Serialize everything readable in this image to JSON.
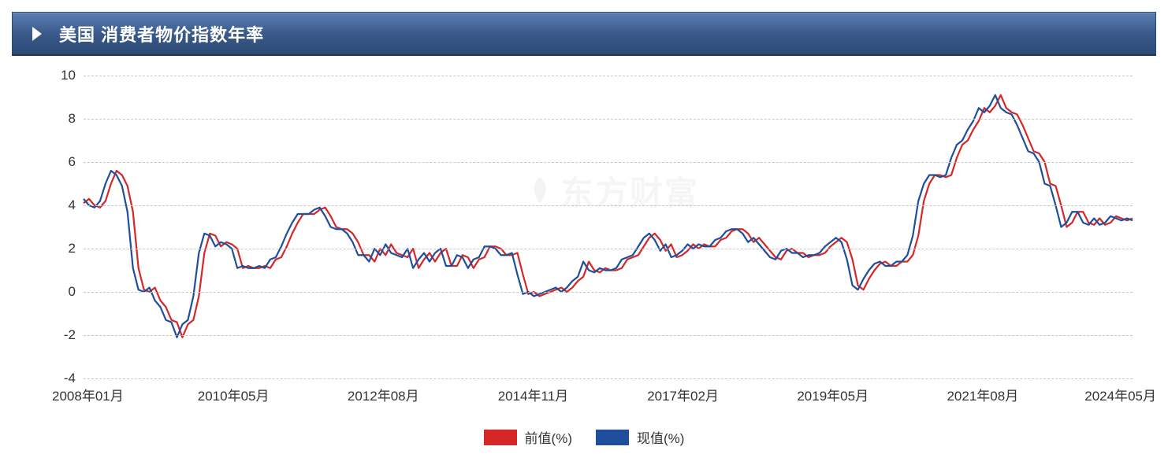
{
  "header": {
    "title": "美国 消费者物价指数年率"
  },
  "chart": {
    "type": "line",
    "ylim": [
      -4,
      10
    ],
    "ytick_step": 2,
    "yticks": [
      -4,
      -2,
      0,
      2,
      4,
      6,
      8,
      10
    ],
    "xticks": [
      "2008年01月",
      "2010年05月",
      "2012年08月",
      "2014年11月",
      "2017年02月",
      "2019年05月",
      "2021年08月",
      "2024年05月"
    ],
    "grid_color": "#c8c8c8",
    "background_color": "#ffffff",
    "line_width": 2.2,
    "watermark": "东方财富",
    "series": [
      {
        "name": "前值(%)",
        "color": "#d62728",
        "values": [
          4.1,
          4.3,
          4.0,
          3.9,
          4.2,
          5.0,
          5.6,
          5.4,
          4.9,
          3.7,
          1.1,
          0.1,
          0.0,
          0.2,
          -0.4,
          -0.7,
          -1.3,
          -1.4,
          -2.1,
          -1.5,
          -1.3,
          -0.2,
          1.8,
          2.7,
          2.6,
          2.1,
          2.3,
          2.2,
          2.0,
          1.1,
          1.2,
          1.1,
          1.1,
          1.2,
          1.1,
          1.5,
          1.6,
          2.1,
          2.7,
          3.2,
          3.6,
          3.6,
          3.6,
          3.8,
          3.9,
          3.5,
          3.0,
          2.9,
          2.9,
          2.7,
          2.3,
          1.7,
          1.7,
          1.4,
          2.0,
          1.7,
          2.2,
          1.8,
          1.7,
          1.6,
          2.0,
          1.1,
          1.5,
          1.8,
          1.4,
          1.8,
          2.0,
          1.2,
          1.2,
          1.7,
          1.6,
          1.1,
          1.5,
          1.6,
          2.1,
          2.1,
          2.0,
          1.7,
          1.7,
          1.8,
          0.8,
          -0.1,
          0.0,
          -0.2,
          -0.1,
          0.0,
          0.1,
          0.2,
          0.0,
          0.2,
          0.5,
          0.7,
          1.4,
          1.0,
          0.9,
          1.1,
          1.0,
          1.0,
          1.1,
          1.5,
          1.6,
          1.7,
          2.1,
          2.5,
          2.7,
          2.4,
          1.9,
          2.2,
          1.6,
          1.7,
          1.9,
          2.2,
          2.0,
          2.2,
          2.1,
          2.1,
          2.4,
          2.5,
          2.8,
          2.9,
          2.9,
          2.7,
          2.3,
          2.5,
          2.2,
          1.9,
          1.6,
          1.5,
          1.9,
          2.0,
          1.8,
          1.8,
          1.6,
          1.7,
          1.7,
          1.8,
          2.1,
          2.3,
          2.5,
          2.3,
          1.5,
          0.3,
          0.1,
          0.6,
          1.0,
          1.3,
          1.4,
          1.2,
          1.2,
          1.4,
          1.4,
          1.7,
          2.6,
          4.2,
          5.0,
          5.4,
          5.4,
          5.3,
          5.4,
          6.2,
          6.8,
          7.0,
          7.5,
          7.9,
          8.5,
          8.3,
          8.6,
          9.1,
          8.5,
          8.3,
          8.2,
          7.7,
          7.1,
          6.5,
          6.4,
          6.0,
          5.0,
          4.9,
          4.0,
          3.0,
          3.2,
          3.7,
          3.7,
          3.2,
          3.1,
          3.4,
          3.1,
          3.2,
          3.5,
          3.4,
          3.3,
          3.4
        ]
      },
      {
        "name": "现值(%)",
        "color": "#1f4e9c",
        "values": [
          4.3,
          4.0,
          3.9,
          4.2,
          5.0,
          5.6,
          5.4,
          4.9,
          3.7,
          1.1,
          0.1,
          0.0,
          0.2,
          -0.4,
          -0.7,
          -1.3,
          -1.4,
          -2.1,
          -1.5,
          -1.3,
          -0.2,
          1.8,
          2.7,
          2.6,
          2.1,
          2.3,
          2.2,
          2.0,
          1.1,
          1.2,
          1.1,
          1.1,
          1.2,
          1.1,
          1.5,
          1.6,
          2.1,
          2.7,
          3.2,
          3.6,
          3.6,
          3.6,
          3.8,
          3.9,
          3.5,
          3.0,
          2.9,
          2.9,
          2.7,
          2.3,
          1.7,
          1.7,
          1.4,
          2.0,
          1.7,
          2.2,
          1.8,
          1.7,
          1.6,
          2.0,
          1.1,
          1.5,
          1.8,
          1.4,
          1.8,
          2.0,
          1.2,
          1.2,
          1.7,
          1.6,
          1.1,
          1.5,
          1.6,
          2.1,
          2.1,
          2.0,
          1.7,
          1.7,
          1.8,
          0.8,
          -0.1,
          0.0,
          -0.2,
          -0.1,
          0.0,
          0.1,
          0.2,
          0.0,
          0.2,
          0.5,
          0.7,
          1.4,
          1.0,
          0.9,
          1.1,
          1.0,
          1.0,
          1.1,
          1.5,
          1.6,
          1.7,
          2.1,
          2.5,
          2.7,
          2.4,
          1.9,
          2.2,
          1.6,
          1.7,
          1.9,
          2.2,
          2.0,
          2.2,
          2.1,
          2.1,
          2.4,
          2.5,
          2.8,
          2.9,
          2.9,
          2.7,
          2.3,
          2.5,
          2.2,
          1.9,
          1.6,
          1.5,
          1.9,
          2.0,
          1.8,
          1.8,
          1.6,
          1.7,
          1.7,
          1.8,
          2.1,
          2.3,
          2.5,
          2.3,
          1.5,
          0.3,
          0.1,
          0.6,
          1.0,
          1.3,
          1.4,
          1.2,
          1.2,
          1.4,
          1.4,
          1.7,
          2.6,
          4.2,
          5.0,
          5.4,
          5.4,
          5.3,
          5.4,
          6.2,
          6.8,
          7.0,
          7.5,
          7.9,
          8.5,
          8.3,
          8.6,
          9.1,
          8.5,
          8.3,
          8.2,
          7.7,
          7.1,
          6.5,
          6.4,
          6.0,
          5.0,
          4.9,
          4.0,
          3.0,
          3.2,
          3.7,
          3.7,
          3.2,
          3.1,
          3.4,
          3.1,
          3.2,
          3.5,
          3.4,
          3.3,
          3.4,
          3.3
        ]
      }
    ]
  },
  "legend": {
    "items": [
      {
        "color": "#d62728",
        "label": "前值(%)"
      },
      {
        "color": "#1f4e9c",
        "label": "现值(%)"
      }
    ]
  }
}
